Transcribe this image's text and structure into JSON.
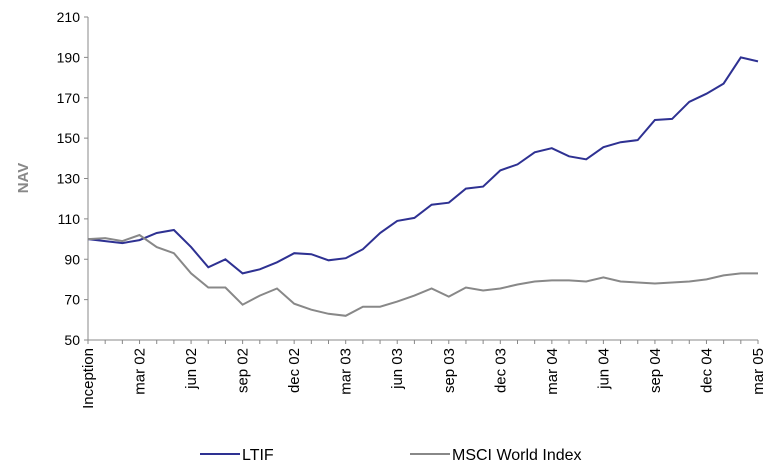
{
  "chart_data": {
    "type": "line",
    "y_label": "NAV",
    "categories": [
      "Inception",
      null,
      null,
      "mar 02",
      null,
      null,
      "jun 02",
      null,
      null,
      "sep 02",
      null,
      null,
      "dec 02",
      null,
      null,
      "mar 03",
      null,
      null,
      "jun 03",
      null,
      null,
      "sep 03",
      null,
      null,
      "dec 03",
      null,
      null,
      "mar 04",
      null,
      null,
      "jun 04",
      null,
      null,
      "sep 04",
      null,
      null,
      "dec 04",
      null,
      null,
      "mar 05"
    ],
    "series": [
      {
        "name": "LTIF",
        "color": "#2e3192",
        "values": [
          100,
          99,
          98,
          99.5,
          103,
          104.5,
          96,
          86,
          90,
          83,
          85,
          88.5,
          93,
          92.5,
          89.5,
          90.5,
          95,
          103,
          109,
          110.5,
          117,
          118,
          125,
          126,
          134,
          137,
          143,
          145,
          141,
          139.5,
          145.5,
          148,
          149,
          159,
          159.5,
          168,
          172,
          177,
          190,
          188
        ]
      },
      {
        "name": "MSCI World Index",
        "color": "#888888",
        "values": [
          100,
          100.5,
          99,
          102,
          96,
          93,
          83,
          76,
          76,
          67.5,
          72,
          75.5,
          68,
          65,
          63,
          62,
          66.5,
          66.5,
          69,
          72,
          75.5,
          71.5,
          76,
          74.5,
          75.5,
          77.5,
          79,
          79.5,
          79.5,
          79,
          81,
          79,
          78.5,
          78,
          78.5,
          79,
          80,
          82,
          83,
          83
        ]
      }
    ],
    "ylim": [
      50,
      210
    ],
    "yticks": [
      50,
      70,
      90,
      110,
      130,
      150,
      170,
      190,
      210
    ],
    "grid": false,
    "legend": "bottom"
  }
}
